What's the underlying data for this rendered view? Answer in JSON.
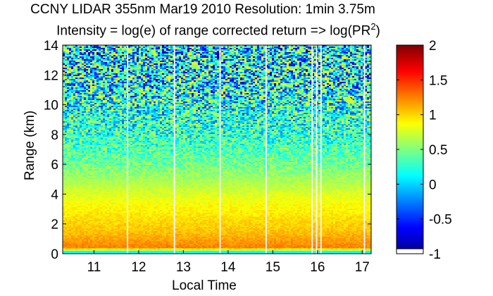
{
  "chart_data": {
    "type": "heatmap",
    "title_line1": "CCNY LIDAR 355nm Mar19 2010 Resolution: 1min 3.75m",
    "title_line2_prefix": "Intensity = log(e) of range corrected return => log(PR",
    "title_line2_sup": "2",
    "title_line2_suffix": ")",
    "xlabel": "Local Time",
    "ylabel": "Range (km)",
    "xlim": [
      10.3,
      17.2
    ],
    "ylim": [
      0,
      14
    ],
    "xticks": [
      11,
      12,
      13,
      14,
      15,
      16,
      17
    ],
    "yticks": [
      0,
      2,
      4,
      6,
      8,
      10,
      12,
      14
    ],
    "colorbar": {
      "range": [
        -1,
        2
      ],
      "ticks": [
        -1,
        -0.5,
        0,
        0.5,
        1,
        1.5,
        2
      ],
      "tick_labels": [
        "-1",
        "-0.5",
        "0",
        "0.5",
        "1",
        "1.5",
        "2"
      ],
      "colormap": "jet"
    },
    "vertical_gaps": [
      11.75,
      12.8,
      13.82,
      14.85,
      15.88,
      15.98,
      16.08,
      17.05
    ],
    "profile": [
      {
        "range_km": 0.1,
        "value": 0.2
      },
      {
        "range_km": 0.4,
        "value": 1.25
      },
      {
        "range_km": 1.5,
        "value": 1.05
      },
      {
        "range_km": 3.5,
        "value": 0.85
      },
      {
        "range_km": 6,
        "value": 0.45
      },
      {
        "range_km": 8,
        "value": 0.25
      },
      {
        "range_km": 14,
        "value": 0.05
      }
    ],
    "feature": {
      "x": 16.7,
      "y": 10.3,
      "value": 0.7
    }
  }
}
